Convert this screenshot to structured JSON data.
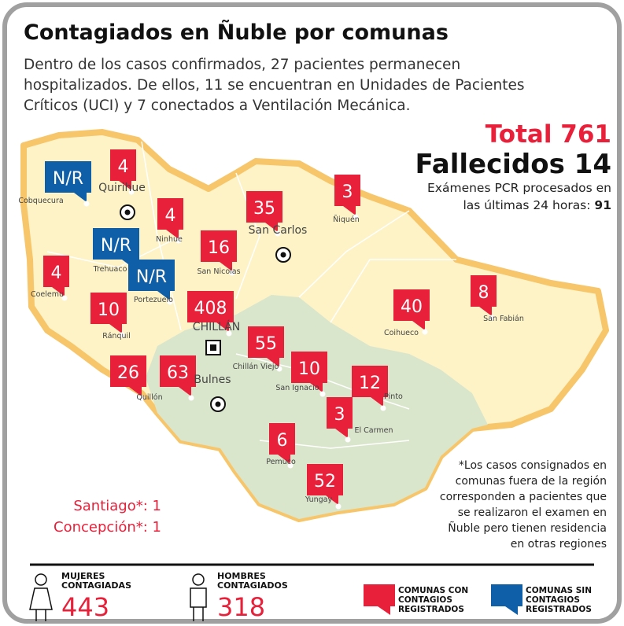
{
  "title": "Contagiados en Ñuble por comunas",
  "intro": "Dentro de los casos confirmados, 27 pacientes permanecen hospitalizados. De ellos, 11 se encuentran en Unidades de Pacientes Críticos (UCI) y 7 conectados a Ventilación Mecánica.",
  "total": {
    "label": "Total",
    "value": 761
  },
  "deaths": {
    "label": "Fallecidos",
    "value": 14
  },
  "pcr": {
    "label": "Exámenes PCR procesados en las últimas 24 horas:",
    "value": 91
  },
  "communes": [
    {
      "name": "Cobquecura",
      "count": "N/R"
    },
    {
      "name": "Quirihue",
      "count": 4
    },
    {
      "name": "Ninhue",
      "count": 4
    },
    {
      "name": "Trehuaco",
      "count": "N/R"
    },
    {
      "name": "Portezuelo",
      "count": "N/R"
    },
    {
      "name": "Coelemu",
      "count": 4
    },
    {
      "name": "Ránquil",
      "count": 10
    },
    {
      "name": "San Nicolas",
      "count": 16
    },
    {
      "name": "San Carlos",
      "count": 35
    },
    {
      "name": "Ñiquén",
      "count": 3
    },
    {
      "name": "San Fabián",
      "count": 8
    },
    {
      "name": "Coihueco",
      "count": 40
    },
    {
      "name": "CHILLÁN",
      "count": 408
    },
    {
      "name": "Chillán Viejo",
      "count": 55
    },
    {
      "name": "Quillón",
      "count": 26
    },
    {
      "name": "Bulnes",
      "count": 63
    },
    {
      "name": "San Ignacio",
      "count": 10
    },
    {
      "name": "Pinto",
      "count": 12
    },
    {
      "name": "El Carmen",
      "count": 3
    },
    {
      "name": "Pemuco",
      "count": 6
    },
    {
      "name": "Yungay",
      "count": 52
    }
  ],
  "outside": [
    {
      "name": "Santiago*:",
      "value": 1
    },
    {
      "name": "Concepción*:",
      "value": 1
    }
  ],
  "note": "*Los casos consignados en comunas fuera de la región corresponden a pacientes que se realizaron el examen en Ñuble pero tienen residencia en otras regiones",
  "women": {
    "label": "MUJERES CONTAGIADAS",
    "value": 443
  },
  "men": {
    "label": "HOMBRES CONTAGIADOS",
    "value": 318
  },
  "legend": {
    "with": "COMUNAS CON CONTAGIOS REGISTRADOS",
    "without": "COMUNAS SIN CONTAGIOS REGISTRADOS"
  }
}
